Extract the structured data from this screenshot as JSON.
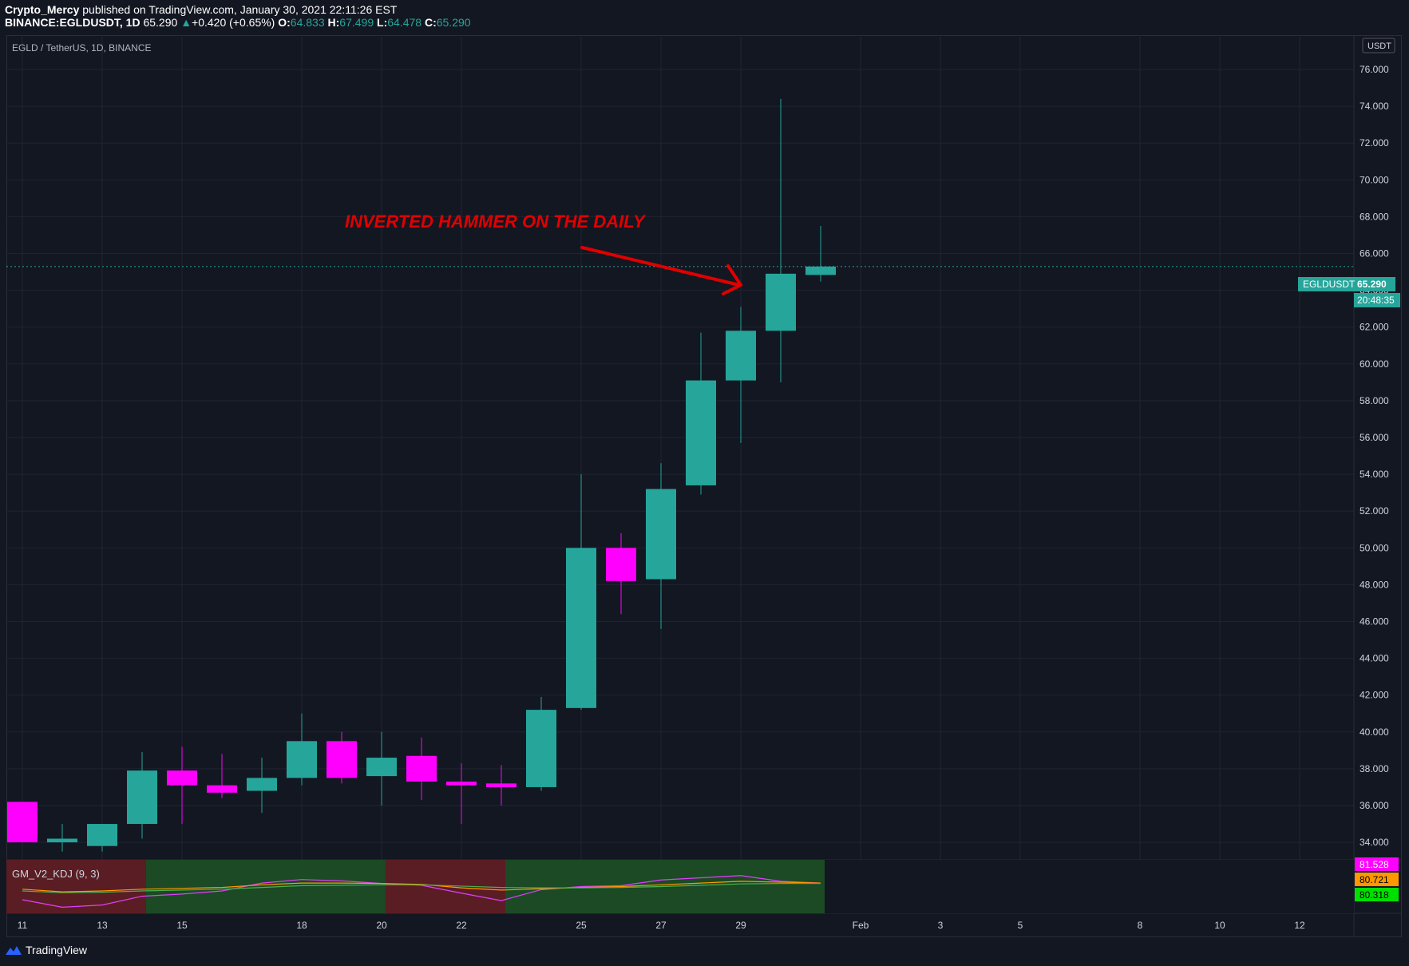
{
  "header": {
    "author": "Crypto_Mercy",
    "published_text": "published on TradingView.com, January 30, 2021 22:11:26 EST",
    "symbol_line": "BINANCE:EGLDUSDT, 1D",
    "last_price": "65.290",
    "change_arrow": "▲",
    "change": "+0.420 (+0.65%)",
    "o_label": "O:",
    "o_value": "64.833",
    "h_label": "H:",
    "h_value": "67.499",
    "l_label": "L:",
    "l_value": "64.478",
    "c_label": "C:",
    "c_value": "65.290"
  },
  "chart_title": "EGLD / TetherUS, 1D, BINANCE",
  "currency_label": "USDT",
  "annotation": "INVERTED HAMMER ON THE DAILY",
  "price_tag": {
    "symbol": "EGLDUSDT",
    "value": "65.290",
    "countdown": "20:48:35"
  },
  "indicator": {
    "name": "GM_V2_KDJ (9, 3)",
    "values": [
      "81.528",
      "80.721",
      "80.318"
    ],
    "colors": [
      "#ff00ff",
      "#ff9800",
      "#00e000"
    ]
  },
  "footer": {
    "brand": "TradingView"
  },
  "colors": {
    "up": "#26a69a",
    "down": "#ff00ff",
    "bg": "#131722",
    "grid": "#1f2431",
    "annotation": "#e00000"
  },
  "chart_data": {
    "type": "candlestick",
    "y_axis": {
      "ticks": [
        "76.000",
        "74.000",
        "72.000",
        "70.000",
        "68.000",
        "66.000",
        "64.000",
        "62.000",
        "60.000",
        "58.000",
        "56.000",
        "54.000",
        "52.000",
        "50.000",
        "48.000",
        "46.000",
        "44.000",
        "42.000",
        "40.000",
        "38.000",
        "36.000",
        "34.000"
      ],
      "ylim": [
        34,
        77
      ]
    },
    "x_axis": {
      "labels": [
        "11",
        "13",
        "15",
        "18",
        "20",
        "22",
        "25",
        "27",
        "29",
        "Feb",
        "3",
        "5",
        "8",
        "10",
        "12"
      ]
    },
    "candles": [
      {
        "date": "Jan 11",
        "open": 36.2,
        "high": 36.2,
        "low": 34.0,
        "close": 34.0
      },
      {
        "date": "Jan 12",
        "open": 34.0,
        "high": 35.0,
        "low": 33.5,
        "close": 34.2
      },
      {
        "date": "Jan 13",
        "open": 33.8,
        "high": 35.0,
        "low": 33.5,
        "close": 35.0
      },
      {
        "date": "Jan 14",
        "open": 35.0,
        "high": 38.9,
        "low": 34.2,
        "close": 37.9
      },
      {
        "date": "Jan 15",
        "open": 37.9,
        "high": 39.2,
        "low": 35.0,
        "close": 37.1
      },
      {
        "date": "Jan 16",
        "open": 37.1,
        "high": 38.8,
        "low": 36.4,
        "close": 36.7
      },
      {
        "date": "Jan 17",
        "open": 36.8,
        "high": 38.6,
        "low": 35.6,
        "close": 37.5
      },
      {
        "date": "Jan 18",
        "open": 37.5,
        "high": 41.0,
        "low": 37.1,
        "close": 39.5
      },
      {
        "date": "Jan 19",
        "open": 39.5,
        "high": 40.0,
        "low": 37.2,
        "close": 37.5
      },
      {
        "date": "Jan 20",
        "open": 37.6,
        "high": 40.0,
        "low": 36.0,
        "close": 38.6
      },
      {
        "date": "Jan 21",
        "open": 38.7,
        "high": 39.7,
        "low": 36.3,
        "close": 37.3
      },
      {
        "date": "Jan 22",
        "open": 37.3,
        "high": 38.3,
        "low": 35.0,
        "close": 37.1
      },
      {
        "date": "Jan 23",
        "open": 37.2,
        "high": 38.2,
        "low": 36.0,
        "close": 37.0
      },
      {
        "date": "Jan 24",
        "open": 37.0,
        "high": 41.9,
        "low": 36.8,
        "close": 41.2
      },
      {
        "date": "Jan 25",
        "open": 41.3,
        "high": 54.0,
        "low": 41.2,
        "close": 50.0
      },
      {
        "date": "Jan 26",
        "open": 50.0,
        "high": 50.8,
        "low": 46.4,
        "close": 48.2
      },
      {
        "date": "Jan 27",
        "open": 48.3,
        "high": 54.6,
        "low": 45.6,
        "close": 53.2
      },
      {
        "date": "Jan 28",
        "open": 53.4,
        "high": 61.7,
        "low": 52.9,
        "close": 59.1
      },
      {
        "date": "Jan 29",
        "open": 59.1,
        "high": 63.1,
        "low": 55.7,
        "close": 61.8
      },
      {
        "date": "Jan 30",
        "open": 61.8,
        "high": 74.4,
        "low": 59.0,
        "close": 64.9
      },
      {
        "date": "Jan 31",
        "open": 64.833,
        "high": 67.499,
        "low": 64.478,
        "close": 65.29
      }
    ]
  }
}
